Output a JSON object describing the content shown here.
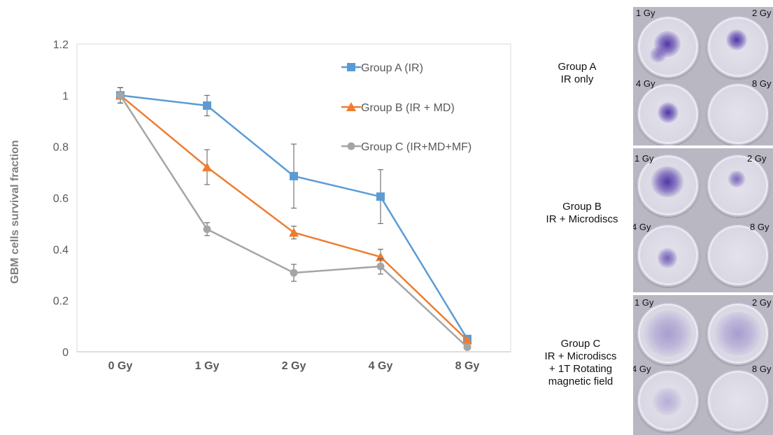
{
  "chart_data": {
    "type": "line",
    "categories": [
      "0 Gy",
      "1 Gy",
      "2 Gy",
      "4 Gy",
      "8 Gy"
    ],
    "ylabel": "GBM cells survival fraction",
    "xlabel": "",
    "ylim": [
      0,
      1.2
    ],
    "yticks": [
      "0",
      "0.2",
      "0.4",
      "0.6",
      "0.8",
      "1",
      "1.2"
    ],
    "grid": false,
    "legend_placement": "top-right",
    "series": [
      {
        "name": "Group A (IR)",
        "color": "#5B9BD5",
        "marker": "square",
        "values": [
          1.0,
          0.96,
          0.685,
          0.605,
          0.05
        ],
        "errors": [
          0.03,
          0.04,
          0.125,
          0.105,
          0.0
        ]
      },
      {
        "name": "Group B (IR  + MD)",
        "color": "#ED7D31",
        "marker": "triangle",
        "values": [
          1.0,
          0.72,
          0.465,
          0.37,
          0.045
        ],
        "errors": [
          0.03,
          0.068,
          0.025,
          0.03,
          0.0
        ]
      },
      {
        "name": "Group C  (IR+MD+MF)",
        "color": "#A5A5A5",
        "marker": "circle",
        "values": [
          1.0,
          0.478,
          0.308,
          0.333,
          0.018
        ],
        "errors": [
          0.03,
          0.025,
          0.033,
          0.03,
          0.0
        ]
      }
    ]
  },
  "panels": [
    {
      "label_lines": [
        "Group A",
        "IR only"
      ],
      "doses": [
        "1 Gy",
        "2 Gy",
        "4 Gy",
        "8 Gy"
      ]
    },
    {
      "label_lines": [
        "Group B",
        "IR + Microdiscs"
      ],
      "doses": [
        "1 Gy",
        "2 Gy",
        "4 Gy",
        "8 Gy"
      ]
    },
    {
      "label_lines": [
        "Group C",
        "IR + Microdiscs",
        "+ 1T Rotating",
        "magnetic field"
      ],
      "doses": [
        "1 Gy",
        "2 Gy",
        "4 Gy",
        "8 Gy"
      ]
    }
  ]
}
